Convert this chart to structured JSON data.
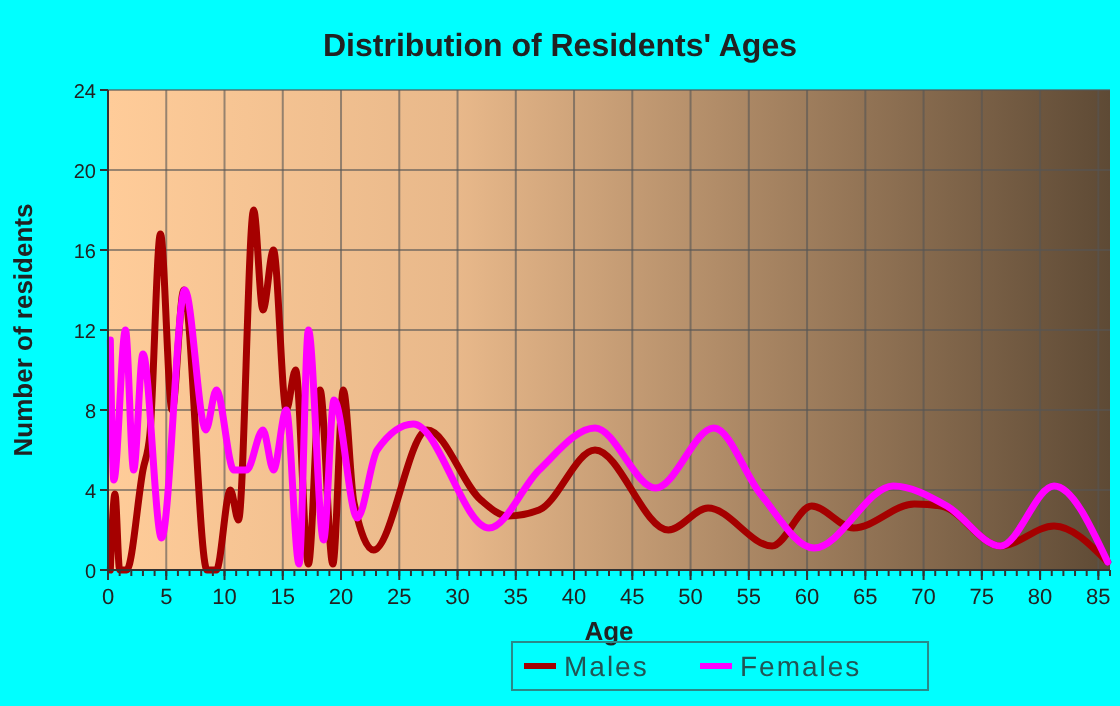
{
  "chart_data": {
    "type": "line",
    "title": "Distribution of Residents' Ages",
    "xlabel": "Age",
    "ylabel": "Number of residents",
    "xlim": [
      0,
      86
    ],
    "xticks": [
      0,
      5,
      10,
      15,
      20,
      25,
      30,
      35,
      40,
      45,
      50,
      55,
      60,
      65,
      70,
      75,
      80,
      85
    ],
    "ylim": [
      0,
      24
    ],
    "yticks": [
      0,
      4,
      8,
      12,
      16,
      20,
      24
    ],
    "grid": true,
    "legend": "bottom",
    "marker": "none",
    "line_style": "solid",
    "series": [
      {
        "name": "Males",
        "color": "#a50000",
        "x": [
          0.2,
          0.6,
          1.0,
          1.6,
          3.0,
          3.6,
          4.5,
          5.5,
          6.5,
          8.5,
          9.3,
          10.5,
          11.2,
          12.5,
          13.3,
          14.2,
          15.3,
          16.1,
          17.2,
          18.2,
          19.3,
          20.2,
          21.1,
          22.8,
          27.4,
          32,
          34.3,
          37,
          41.8,
          48.1,
          51.5,
          57,
          60.4,
          64,
          69.2,
          71.5,
          76.6,
          81.2,
          85.8
        ],
        "values": [
          0,
          3.8,
          0,
          0,
          5,
          6.8,
          16.8,
          8,
          14,
          0,
          0,
          4,
          2.5,
          18,
          13,
          16,
          8,
          10,
          0.3,
          9,
          0.3,
          9,
          3.4,
          1,
          7,
          3.5,
          2.7,
          3,
          6,
          2,
          3.1,
          1.2,
          3.2,
          2.1,
          3.3,
          3.2,
          1.2,
          2.2,
          0.4
        ]
      },
      {
        "name": "Females",
        "color": "#ff00ff",
        "x": [
          0.2,
          0.5,
          1.5,
          2.2,
          3.0,
          4.6,
          6.6,
          8.4,
          9.3,
          10.8,
          11.9,
          13.3,
          14.2,
          15.3,
          16.4,
          17.2,
          18.5,
          19.4,
          21.4,
          23.1,
          26.2,
          32.7,
          37,
          41.8,
          47,
          52,
          56,
          60.6,
          67.4,
          72,
          76.6,
          81.2,
          85.8
        ],
        "values": [
          11.5,
          4.5,
          12,
          5,
          10.8,
          1.6,
          14,
          7,
          9,
          5,
          5,
          7,
          5,
          8,
          0.3,
          12,
          1.5,
          8.5,
          2.6,
          6,
          7.3,
          2.1,
          5,
          7.1,
          4.1,
          7.1,
          3.8,
          1.1,
          4.2,
          3.2,
          1.2,
          4.2,
          0.4
        ]
      }
    ]
  }
}
